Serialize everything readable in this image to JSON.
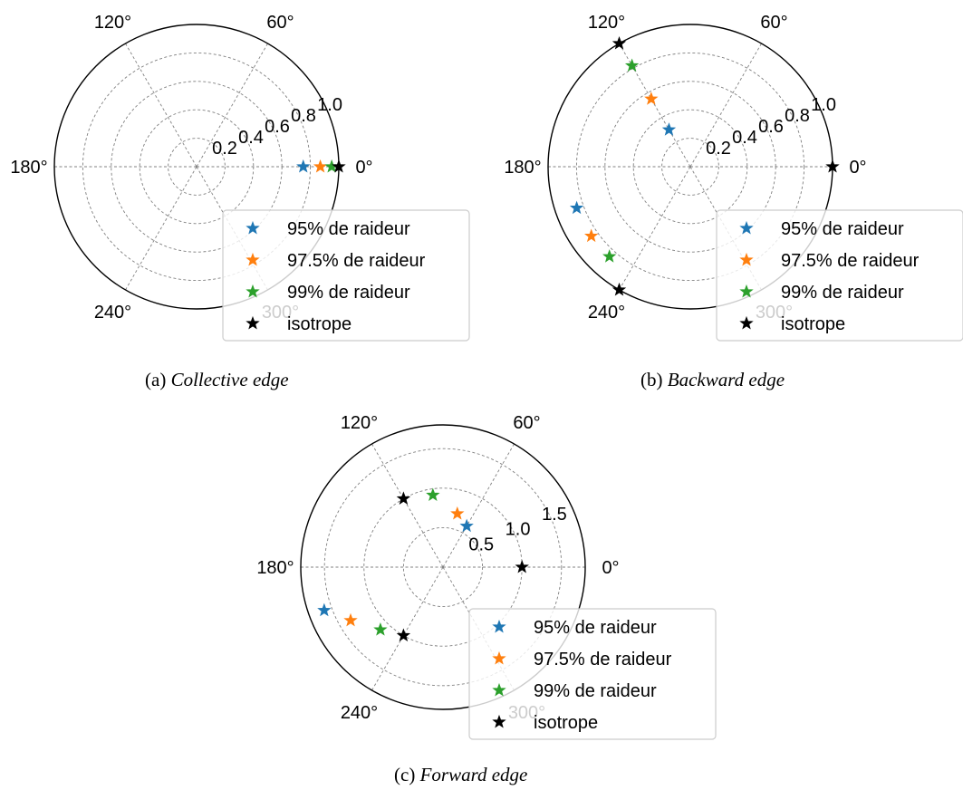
{
  "chart_data": [
    {
      "type": "scatter",
      "polar": true,
      "caption_label": "(a)",
      "caption_title": "Collective edge",
      "rlim": [
        0,
        1.0
      ],
      "r_ticks": [
        0.2,
        0.4,
        0.6,
        0.8,
        1.0
      ],
      "r_tick_labels": [
        "0.2",
        "0.4",
        "0.6",
        "0.8",
        "1.0"
      ],
      "theta_ticks": [
        0,
        60,
        120,
        180,
        240,
        300
      ],
      "theta_tick_labels": [
        "0°",
        "60°",
        "120°",
        "180°",
        "240°",
        "300°"
      ],
      "grid": true,
      "legend_position": "bottom-right",
      "series": [
        {
          "name": "95% de raideur",
          "color": "#1f77b4",
          "points": [
            {
              "theta": 0,
              "r": 0.75
            }
          ]
        },
        {
          "name": "97.5% de raideur",
          "color": "#ff7f0e",
          "points": [
            {
              "theta": 0,
              "r": 0.87
            }
          ]
        },
        {
          "name": "99% de raideur",
          "color": "#2ca02c",
          "points": [
            {
              "theta": 0,
              "r": 0.95
            }
          ]
        },
        {
          "name": "isotrope",
          "color": "#000000",
          "points": [
            {
              "theta": 0,
              "r": 1.0
            }
          ]
        }
      ]
    },
    {
      "type": "scatter",
      "polar": true,
      "caption_label": "(b)",
      "caption_title": "Backward edge",
      "rlim": [
        0,
        1.0
      ],
      "r_ticks": [
        0.2,
        0.4,
        0.6,
        0.8,
        1.0
      ],
      "r_tick_labels": [
        "0.2",
        "0.4",
        "0.6",
        "0.8",
        "1.0"
      ],
      "theta_ticks": [
        0,
        60,
        120,
        180,
        240,
        300
      ],
      "theta_tick_labels": [
        "0°",
        "60°",
        "120°",
        "180°",
        "240°",
        "300°"
      ],
      "grid": true,
      "legend_position": "bottom-right",
      "series": [
        {
          "name": "95% de raideur",
          "color": "#1f77b4",
          "points": [
            {
              "theta": 120,
              "r": 0.3
            },
            {
              "theta": 200,
              "r": 0.85
            }
          ]
        },
        {
          "name": "97.5% de raideur",
          "color": "#ff7f0e",
          "points": [
            {
              "theta": 120,
              "r": 0.55
            },
            {
              "theta": 215,
              "r": 0.85
            }
          ]
        },
        {
          "name": "99% de raideur",
          "color": "#2ca02c",
          "points": [
            {
              "theta": 120,
              "r": 0.82
            },
            {
              "theta": 228,
              "r": 0.85
            }
          ]
        },
        {
          "name": "isotrope",
          "color": "#000000",
          "points": [
            {
              "theta": 0,
              "r": 1.0
            },
            {
              "theta": 120,
              "r": 1.0
            },
            {
              "theta": 240,
              "r": 1.0
            }
          ]
        }
      ]
    },
    {
      "type": "scatter",
      "polar": true,
      "caption_label": "(c)",
      "caption_title": "Forward edge",
      "rlim": [
        0,
        1.8
      ],
      "r_ticks": [
        0.5,
        1.0,
        1.5
      ],
      "r_tick_labels": [
        "0.5",
        "1.0",
        "1.5"
      ],
      "theta_ticks": [
        0,
        60,
        120,
        180,
        240,
        300
      ],
      "theta_tick_labels": [
        "0°",
        "60°",
        "120°",
        "180°",
        "240°",
        "300°"
      ],
      "grid": true,
      "legend_position": "bottom-right",
      "series": [
        {
          "name": "95% de raideur",
          "color": "#1f77b4",
          "points": [
            {
              "theta": 60,
              "r": 0.6
            },
            {
              "theta": 200,
              "r": 1.6
            }
          ]
        },
        {
          "name": "97.5% de raideur",
          "color": "#ff7f0e",
          "points": [
            {
              "theta": 75,
              "r": 0.7
            },
            {
              "theta": 210,
              "r": 1.35
            }
          ]
        },
        {
          "name": "99% de raideur",
          "color": "#2ca02c",
          "points": [
            {
              "theta": 98,
              "r": 0.92
            },
            {
              "theta": 225,
              "r": 1.12
            }
          ]
        },
        {
          "name": "isotrope",
          "color": "#000000",
          "points": [
            {
              "theta": 0,
              "r": 1.0
            },
            {
              "theta": 120,
              "r": 1.0
            },
            {
              "theta": 240,
              "r": 1.0
            }
          ]
        }
      ]
    }
  ]
}
